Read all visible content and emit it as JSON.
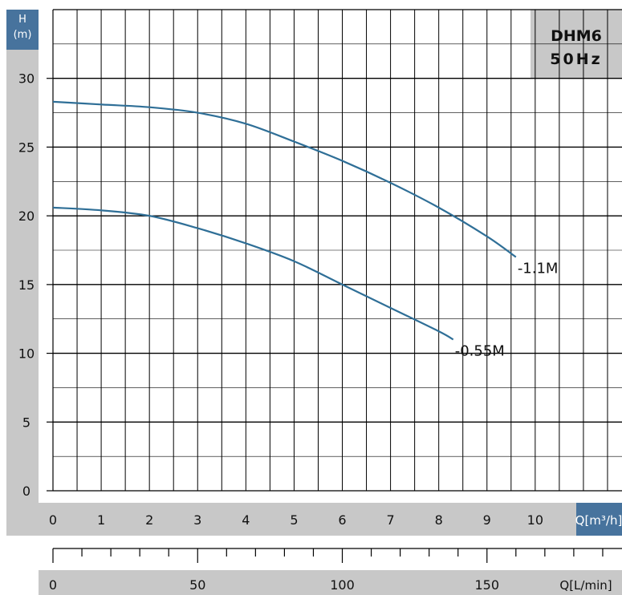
{
  "chart_data": {
    "type": "line",
    "title_lines": [
      "DHM6",
      "50Hz"
    ],
    "y_axis": {
      "label_lines": [
        "H",
        "(m)"
      ],
      "ticks": [
        0,
        5,
        10,
        15,
        20,
        25,
        30
      ],
      "ylim": [
        0,
        35
      ]
    },
    "x_axis_primary": {
      "unit": "Q[m³/h]",
      "ticks": [
        0,
        1,
        2,
        3,
        4,
        5,
        6,
        7,
        8,
        9,
        10
      ],
      "xlim": [
        0,
        11.8
      ]
    },
    "x_axis_secondary": {
      "unit": "Q[L/min]",
      "ticks": [
        0,
        50,
        100,
        150
      ]
    },
    "grid": true,
    "series": [
      {
        "name": "-1.1M",
        "x": [
          0,
          1,
          2,
          3,
          4,
          5,
          6,
          7,
          8,
          9,
          9.6
        ],
        "y": [
          28.3,
          28.1,
          27.9,
          27.5,
          26.7,
          25.4,
          24.0,
          22.4,
          20.6,
          18.5,
          17.0
        ]
      },
      {
        "name": "-0.55M",
        "x": [
          0,
          1,
          2,
          3,
          4,
          5,
          6,
          7,
          8,
          8.3
        ],
        "y": [
          20.6,
          20.4,
          20.0,
          19.1,
          18.0,
          16.7,
          15.0,
          13.3,
          11.6,
          11.0
        ]
      }
    ],
    "colors": {
      "line": "#2f6f97",
      "axis_band": "#c8c8c8",
      "accent_band": "#47739d",
      "grid": "#000000"
    }
  }
}
